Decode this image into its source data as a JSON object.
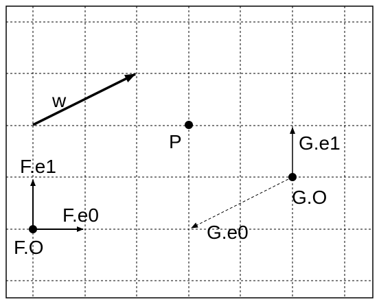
{
  "labels": {
    "w": "w",
    "p": "P",
    "f_e1": "F.e1",
    "f_e0": "F.e0",
    "f_o": "F.O",
    "g_e1": "G.e1",
    "g_o": "G.O",
    "g_e0": "G.e0"
  },
  "style": {
    "grid_color": "#000000",
    "line_color": "#000000",
    "background": "#ffffff"
  }
}
